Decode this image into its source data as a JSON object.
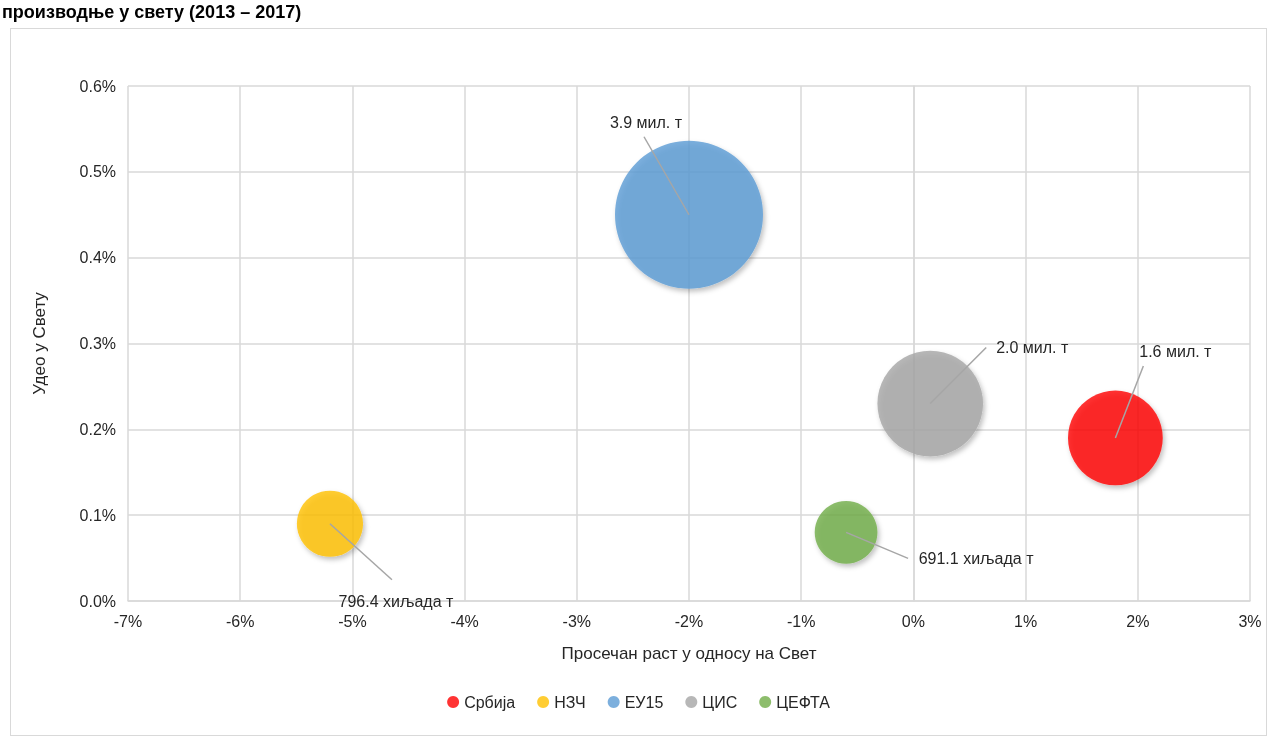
{
  "chart_data": {
    "type": "bubble",
    "title": "производње у свету (2013 – 2017)",
    "xlabel": "Просечан раст у односу на Свет",
    "ylabel": "Удео у Свету",
    "xlim": [
      -7,
      3
    ],
    "xticks": [
      {
        "value": -7,
        "label": "-7%"
      },
      {
        "value": -6,
        "label": "-6%"
      },
      {
        "value": -5,
        "label": "-5%"
      },
      {
        "value": -4,
        "label": "-4%"
      },
      {
        "value": -3,
        "label": "-3%"
      },
      {
        "value": -2,
        "label": "-2%"
      },
      {
        "value": -1,
        "label": "-1%"
      },
      {
        "value": 0,
        "label": "0%"
      },
      {
        "value": 1,
        "label": "1%"
      },
      {
        "value": 2,
        "label": "2%"
      },
      {
        "value": 3,
        "label": "3%"
      }
    ],
    "ylim": [
      0,
      0.6
    ],
    "yticks": [
      {
        "value": 0,
        "label": "0.0%"
      },
      {
        "value": 0.1,
        "label": "0.1%"
      },
      {
        "value": 0.2,
        "label": "0.2%"
      },
      {
        "value": 0.3,
        "label": "0.3%"
      },
      {
        "value": 0.4,
        "label": "0.4%"
      },
      {
        "value": 0.5,
        "label": "0.5%"
      },
      {
        "value": 0.6,
        "label": "0.6%"
      }
    ],
    "series": [
      {
        "name": "Србија",
        "color": "#ff0000",
        "x": [
          1.8
        ],
        "values": [
          0.19
        ],
        "sizes": [
          0.41
        ]
      },
      {
        "name": "НЗЧ",
        "color": "#ffc000",
        "x": [
          -5.2
        ],
        "values": [
          0.09
        ],
        "sizes": [
          0.2
        ]
      },
      {
        "name": "ЕУ15",
        "color": "#5b9bd5",
        "x": [
          -2.0
        ],
        "values": [
          0.45
        ],
        "sizes": [
          1
        ]
      },
      {
        "name": "ЦИС",
        "color": "#a5a5a5",
        "x": [
          0.15
        ],
        "values": [
          0.23
        ],
        "sizes": [
          0.51
        ]
      },
      {
        "name": "ЦЕФТА",
        "color": "#70ad47",
        "x": [
          -0.6
        ],
        "values": [
          0.08
        ],
        "sizes": [
          0.18
        ]
      }
    ],
    "annotations": [
      {
        "text": "1.6 мил. т",
        "x": 1.8,
        "y": 0.19
      },
      {
        "text": "796.4 хиљада т",
        "x": -5.2,
        "y": 0.09
      },
      {
        "text": "3.9 мил. т",
        "x": -2.0,
        "y": 0.45
      },
      {
        "text": "2.0 мил. т",
        "x": 0.15,
        "y": 0.23
      },
      {
        "text": "691.1 хиљада т",
        "x": -0.6,
        "y": 0.08
      }
    ],
    "grid": true,
    "legend": "bottom"
  }
}
